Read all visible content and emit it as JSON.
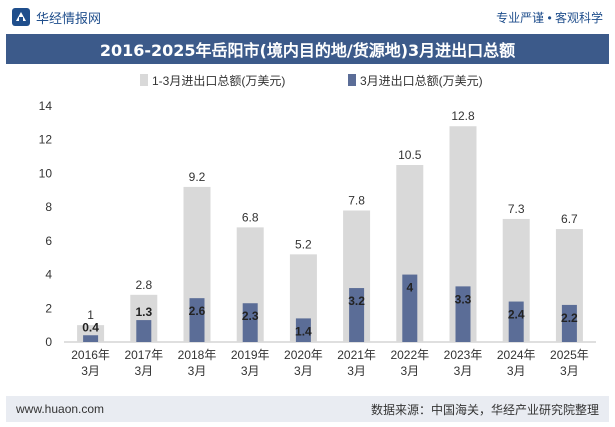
{
  "header": {
    "brand": "华经情报网",
    "slogan": "专业严谨 • 客观科学"
  },
  "footer": {
    "site": "www.huaon.com",
    "source": "数据来源：中国海关，华经产业研究院整理"
  },
  "colors": {
    "series1": "#d9d9d9",
    "series2": "#5b6d97",
    "title_bg": "#3c5a8a",
    "footer_bg": "#e9ecf2",
    "brand": "#1f4e8c"
  },
  "chart_data": {
    "type": "bar",
    "title": "2016-2025年岳阳市(境内目的地/货源地)3月进出口总额",
    "categories": [
      "2016年\n3月",
      "2017年\n3月",
      "2018年\n3月",
      "2019年\n3月",
      "2020年\n3月",
      "2021年\n3月",
      "2022年\n3月",
      "2023年\n3月",
      "2024年\n3月",
      "2025年\n3月"
    ],
    "series": [
      {
        "name": "1-3月进出口总额(万美元)",
        "values": [
          1,
          2.8,
          9.2,
          6.8,
          5.2,
          7.8,
          10.5,
          12.8,
          7.3,
          6.7
        ]
      },
      {
        "name": "3月进出口总额(万美元)",
        "values": [
          0.4,
          1.3,
          2.6,
          2.3,
          1.4,
          3.2,
          4,
          3.3,
          2.4,
          2.2
        ]
      }
    ],
    "ylim": [
      0,
      14
    ],
    "yticks": [
      0,
      2,
      4,
      6,
      8,
      10,
      12,
      14
    ],
    "legend_position": "top",
    "grid": false
  }
}
